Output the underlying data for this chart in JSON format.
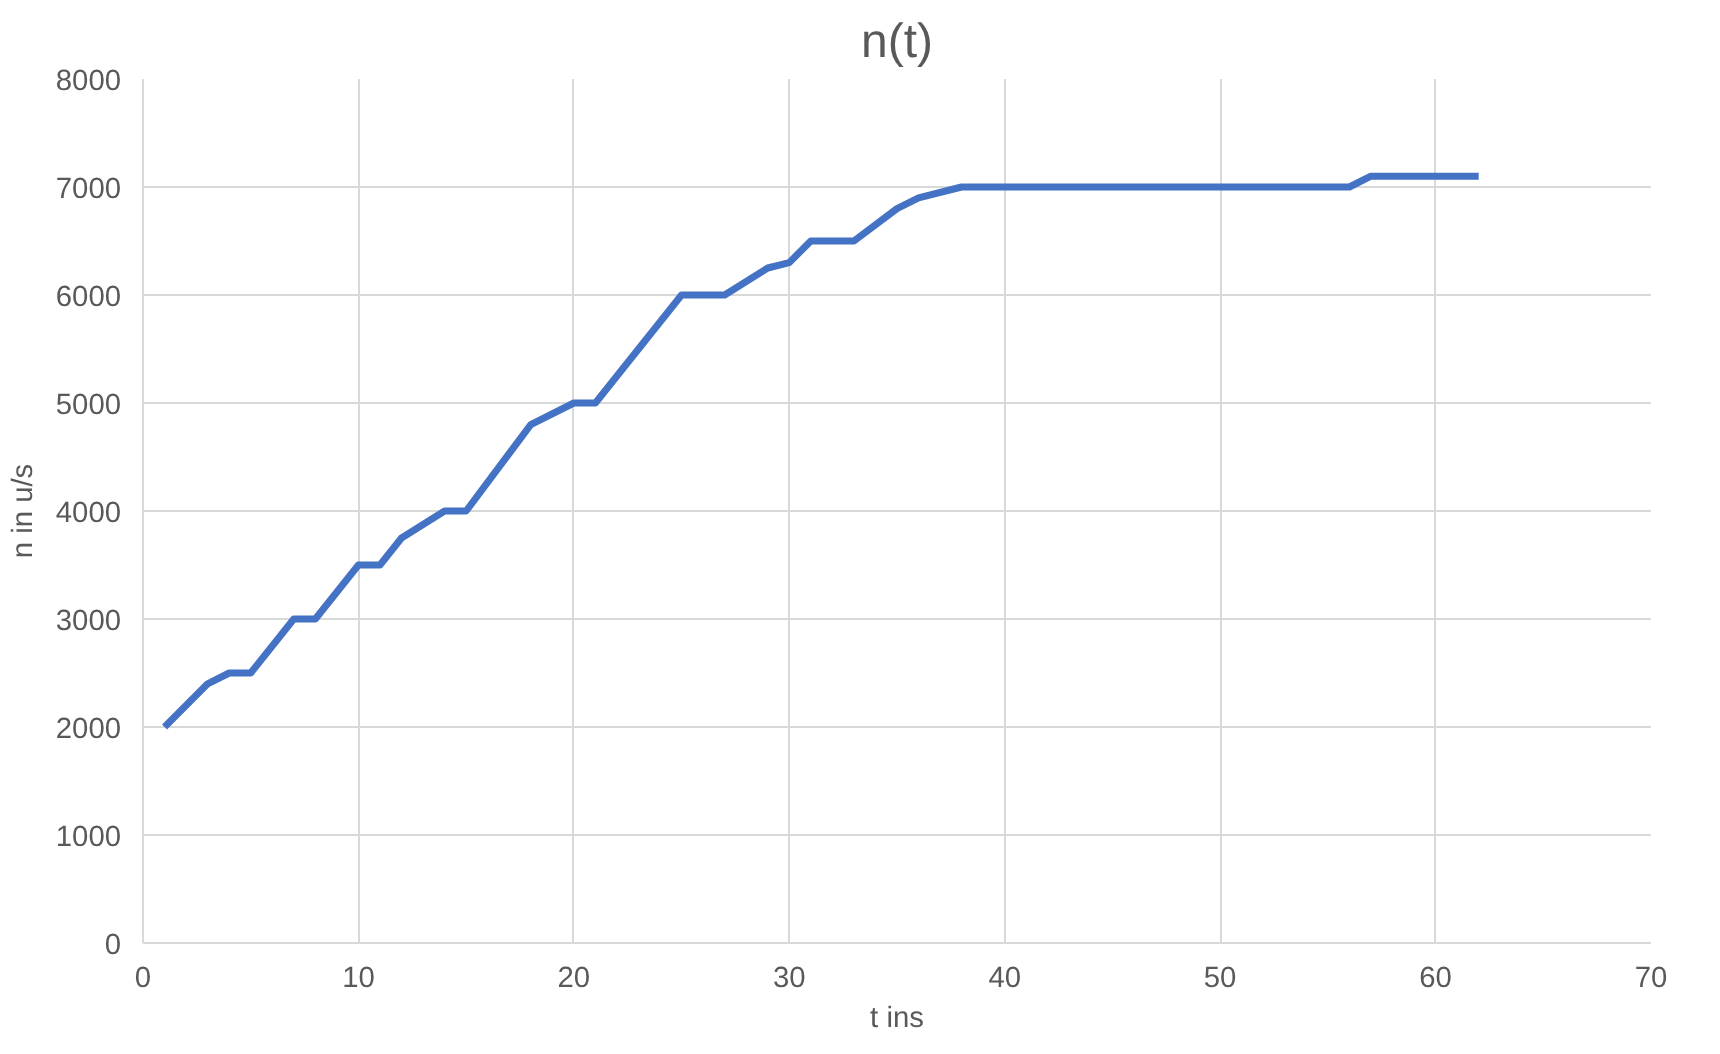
{
  "chart_data": {
    "type": "line",
    "title": "n(t)",
    "xlabel": "t ins",
    "ylabel": "n in u/s",
    "x": [
      1,
      3,
      4,
      5,
      7,
      8,
      10,
      11,
      12,
      14,
      15,
      18,
      20,
      21,
      25,
      27,
      29,
      30,
      31,
      33,
      35,
      36,
      38,
      56,
      57,
      62
    ],
    "series": [
      {
        "color": "#4472c4",
        "values": [
          2000,
          2400,
          2500,
          2500,
          3000,
          3000,
          3500,
          3500,
          3750,
          4000,
          4000,
          4800,
          5000,
          5000,
          6000,
          6000,
          6250,
          6300,
          6500,
          6500,
          6800,
          6900,
          7000,
          7000,
          7100,
          7100
        ]
      }
    ],
    "xlim": [
      0,
      70
    ],
    "xticks": [
      0,
      10,
      20,
      30,
      40,
      50,
      60,
      70
    ],
    "ylim": [
      0,
      8000
    ],
    "yticks": [
      0,
      1000,
      2000,
      3000,
      4000,
      5000,
      6000,
      7000,
      8000
    ],
    "grid": true,
    "marker": "none",
    "line_style": "solid"
  }
}
